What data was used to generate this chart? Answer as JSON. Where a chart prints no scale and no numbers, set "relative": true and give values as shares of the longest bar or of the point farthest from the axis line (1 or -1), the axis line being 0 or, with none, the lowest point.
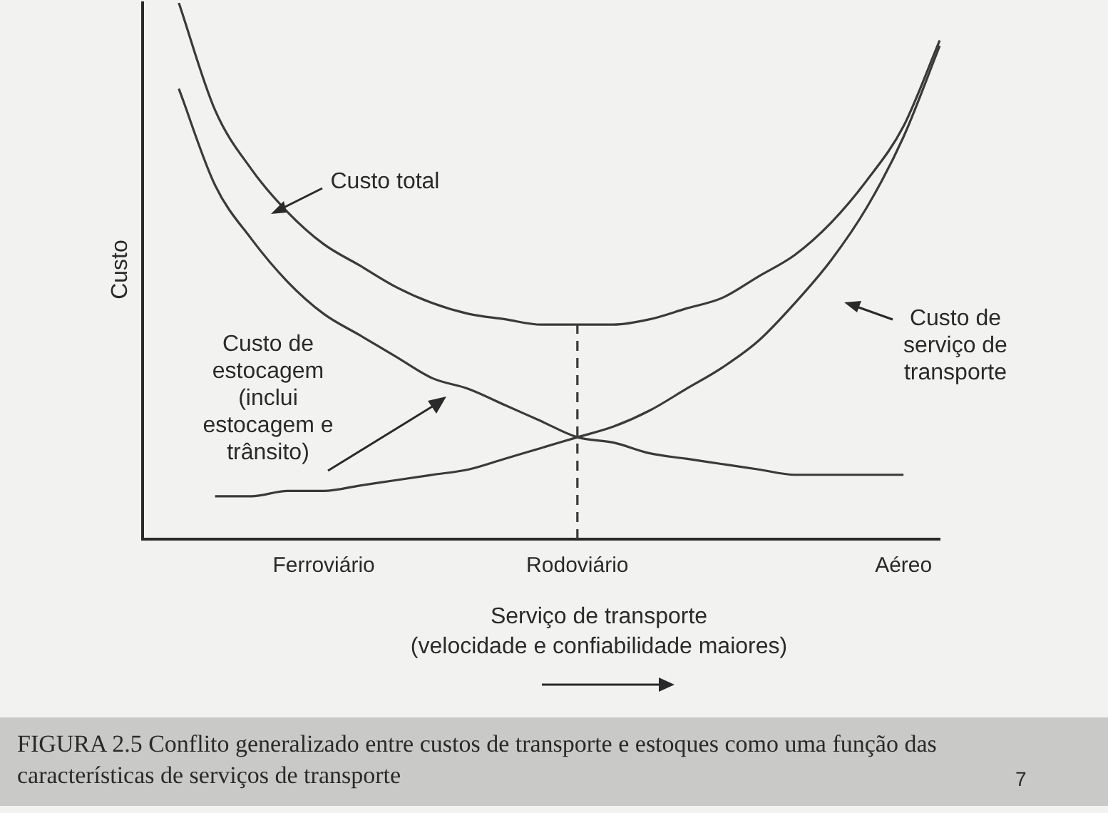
{
  "chart_data": {
    "type": "line",
    "relative": true,
    "title": "FIGURA 2.5 Conflito generalizado entre custos de transporte e estoques como uma função das características de serviços de transporte",
    "ylabel": "Custo",
    "xlabel": "Serviço de transporte\n(velocidade e confiabilidade maiores)",
    "categories": [
      null,
      null,
      null,
      null,
      null,
      "Ferroviário",
      null,
      null,
      null,
      null,
      null,
      null,
      "Rodoviário",
      null,
      null,
      null,
      null,
      null,
      null,
      null,
      null,
      "Aéreo",
      null
    ],
    "series": [
      {
        "name": "Custo total",
        "color": "#3a3a3a",
        "values": [
          null,
          1.0,
          0.8,
          0.69,
          0.61,
          0.55,
          0.51,
          0.47,
          0.44,
          0.42,
          0.41,
          0.4,
          0.4,
          0.4,
          0.41,
          0.43,
          0.45,
          0.49,
          0.53,
          0.59,
          0.67,
          0.77,
          0.93
        ]
      },
      {
        "name": "Custo de estocagem (inclui estocagem e trânsito)",
        "color": "#3a3a3a",
        "values": [
          null,
          0.84,
          0.66,
          0.56,
          0.48,
          0.42,
          0.38,
          0.34,
          0.3,
          0.28,
          0.25,
          0.22,
          0.19,
          0.18,
          0.16,
          0.15,
          0.14,
          0.13,
          0.12,
          0.12,
          0.12,
          0.12,
          null
        ]
      },
      {
        "name": "Custo de serviço de transporte",
        "color": "#3a3a3a",
        "values": [
          null,
          null,
          0.08,
          0.08,
          0.09,
          0.09,
          0.1,
          0.11,
          0.12,
          0.13,
          0.15,
          0.17,
          0.19,
          0.21,
          0.24,
          0.28,
          0.32,
          0.37,
          0.44,
          0.52,
          0.62,
          0.75,
          0.92
        ]
      }
    ],
    "ref_lines": [
      {
        "axis": "x",
        "value": "Rodoviário",
        "line_style": "dashed",
        "color": "#3a3a3a"
      }
    ],
    "annotations": [
      "7"
    ],
    "grid": false,
    "marker": "none",
    "line_style": "solid"
  }
}
